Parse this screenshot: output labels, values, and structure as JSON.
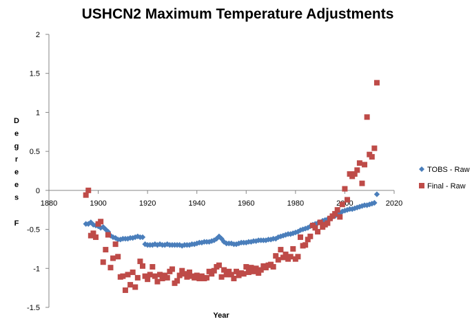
{
  "chart_data": {
    "type": "scatter",
    "title": "USHCN2 Maximum Temperature Adjustments",
    "xlabel": "Year",
    "ylabel_letters": [
      "D",
      "e",
      "g",
      "r",
      "e",
      "e",
      "s",
      "",
      "F"
    ],
    "xlim": [
      1880,
      2020
    ],
    "ylim": [
      -1.5,
      2
    ],
    "x_ticks": [
      1880,
      1900,
      1920,
      1940,
      1960,
      1980,
      2000,
      2020
    ],
    "y_ticks": [
      -1.5,
      -1,
      -0.5,
      0,
      0.5,
      1,
      1.5,
      2
    ],
    "x_tick_labels": [
      "1880",
      "1900",
      "1920",
      "1940",
      "1960",
      "1980",
      "2000",
      "2020"
    ],
    "y_tick_labels": [
      "-1.5",
      "-1",
      "-0.5",
      "0",
      "0.5",
      "1",
      "1.5",
      "2"
    ],
    "grid": false,
    "legend_position": "right",
    "series": [
      {
        "name": "TOBS - Raw",
        "color": "#4A7EBB",
        "marker": "diamond",
        "points": [
          [
            1895,
            -0.43
          ],
          [
            1896,
            -0.43
          ],
          [
            1897,
            -0.41
          ],
          [
            1898,
            -0.44
          ],
          [
            1899,
            -0.45
          ],
          [
            1900,
            -0.46
          ],
          [
            1901,
            -0.48
          ],
          [
            1902,
            -0.47
          ],
          [
            1903,
            -0.5
          ],
          [
            1904,
            -0.53
          ],
          [
            1905,
            -0.58
          ],
          [
            1906,
            -0.6
          ],
          [
            1907,
            -0.61
          ],
          [
            1908,
            -0.63
          ],
          [
            1909,
            -0.63
          ],
          [
            1910,
            -0.62
          ],
          [
            1911,
            -0.62
          ],
          [
            1912,
            -0.62
          ],
          [
            1913,
            -0.61
          ],
          [
            1914,
            -0.61
          ],
          [
            1915,
            -0.6
          ],
          [
            1916,
            -0.59
          ],
          [
            1917,
            -0.6
          ],
          [
            1918,
            -0.6
          ],
          [
            1919,
            -0.69
          ],
          [
            1920,
            -0.7
          ],
          [
            1921,
            -0.7
          ],
          [
            1922,
            -0.7
          ],
          [
            1923,
            -0.69
          ],
          [
            1924,
            -0.7
          ],
          [
            1925,
            -0.69
          ],
          [
            1926,
            -0.7
          ],
          [
            1927,
            -0.7
          ],
          [
            1928,
            -0.69
          ],
          [
            1929,
            -0.7
          ],
          [
            1930,
            -0.7
          ],
          [
            1931,
            -0.7
          ],
          [
            1932,
            -0.7
          ],
          [
            1933,
            -0.7
          ],
          [
            1934,
            -0.71
          ],
          [
            1935,
            -0.7
          ],
          [
            1936,
            -0.7
          ],
          [
            1937,
            -0.7
          ],
          [
            1938,
            -0.69
          ],
          [
            1939,
            -0.69
          ],
          [
            1940,
            -0.68
          ],
          [
            1941,
            -0.67
          ],
          [
            1942,
            -0.67
          ],
          [
            1943,
            -0.66
          ],
          [
            1944,
            -0.66
          ],
          [
            1945,
            -0.66
          ],
          [
            1946,
            -0.65
          ],
          [
            1947,
            -0.64
          ],
          [
            1948,
            -0.62
          ],
          [
            1949,
            -0.59
          ],
          [
            1950,
            -0.62
          ],
          [
            1951,
            -0.66
          ],
          [
            1952,
            -0.68
          ],
          [
            1953,
            -0.68
          ],
          [
            1954,
            -0.68
          ],
          [
            1955,
            -0.69
          ],
          [
            1956,
            -0.69
          ],
          [
            1957,
            -0.68
          ],
          [
            1958,
            -0.67
          ],
          [
            1959,
            -0.67
          ],
          [
            1960,
            -0.67
          ],
          [
            1961,
            -0.66
          ],
          [
            1962,
            -0.66
          ],
          [
            1963,
            -0.65
          ],
          [
            1964,
            -0.65
          ],
          [
            1965,
            -0.64
          ],
          [
            1966,
            -0.64
          ],
          [
            1967,
            -0.64
          ],
          [
            1968,
            -0.64
          ],
          [
            1969,
            -0.63
          ],
          [
            1970,
            -0.63
          ],
          [
            1971,
            -0.62
          ],
          [
            1972,
            -0.62
          ],
          [
            1973,
            -0.6
          ],
          [
            1974,
            -0.59
          ],
          [
            1975,
            -0.58
          ],
          [
            1976,
            -0.57
          ],
          [
            1977,
            -0.56
          ],
          [
            1978,
            -0.56
          ],
          [
            1979,
            -0.55
          ],
          [
            1980,
            -0.54
          ],
          [
            1981,
            -0.53
          ],
          [
            1982,
            -0.51
          ],
          [
            1983,
            -0.5
          ],
          [
            1984,
            -0.49
          ],
          [
            1985,
            -0.48
          ],
          [
            1986,
            -0.46
          ],
          [
            1987,
            -0.44
          ],
          [
            1988,
            -0.43
          ],
          [
            1989,
            -0.42
          ],
          [
            1990,
            -0.41
          ],
          [
            1991,
            -0.39
          ],
          [
            1992,
            -0.38
          ],
          [
            1993,
            -0.37
          ],
          [
            1994,
            -0.36
          ],
          [
            1995,
            -0.34
          ],
          [
            1996,
            -0.33
          ],
          [
            1997,
            -0.31
          ],
          [
            1998,
            -0.29
          ],
          [
            1999,
            -0.27
          ],
          [
            2000,
            -0.26
          ],
          [
            2001,
            -0.25
          ],
          [
            2002,
            -0.24
          ],
          [
            2003,
            -0.24
          ],
          [
            2004,
            -0.23
          ],
          [
            2005,
            -0.22
          ],
          [
            2006,
            -0.21
          ],
          [
            2007,
            -0.2
          ],
          [
            2008,
            -0.19
          ],
          [
            2009,
            -0.19
          ],
          [
            2010,
            -0.18
          ],
          [
            2011,
            -0.17
          ],
          [
            2012,
            -0.16
          ],
          [
            2013,
            -0.05
          ]
        ]
      },
      {
        "name": "Final - Raw",
        "color": "#BE4B48",
        "marker": "square",
        "points": [
          [
            1895,
            -0.06
          ],
          [
            1896,
            0.0
          ],
          [
            1897,
            -0.58
          ],
          [
            1898,
            -0.55
          ],
          [
            1899,
            -0.6
          ],
          [
            1900,
            -0.43
          ],
          [
            1901,
            -0.4
          ],
          [
            1902,
            -0.92
          ],
          [
            1903,
            -0.76
          ],
          [
            1904,
            -0.57
          ],
          [
            1905,
            -0.99
          ],
          [
            1906,
            -0.87
          ],
          [
            1907,
            -0.69
          ],
          [
            1908,
            -0.85
          ],
          [
            1909,
            -1.11
          ],
          [
            1910,
            -1.1
          ],
          [
            1911,
            -1.28
          ],
          [
            1912,
            -1.08
          ],
          [
            1913,
            -1.21
          ],
          [
            1914,
            -1.05
          ],
          [
            1915,
            -1.24
          ],
          [
            1916,
            -1.12
          ],
          [
            1917,
            -0.91
          ],
          [
            1918,
            -0.97
          ],
          [
            1919,
            -1.1
          ],
          [
            1920,
            -1.14
          ],
          [
            1921,
            -1.08
          ],
          [
            1922,
            -0.98
          ],
          [
            1923,
            -1.1
          ],
          [
            1924,
            -1.17
          ],
          [
            1925,
            -1.08
          ],
          [
            1926,
            -1.13
          ],
          [
            1927,
            -1.09
          ],
          [
            1928,
            -1.12
          ],
          [
            1929,
            -1.04
          ],
          [
            1930,
            -1.01
          ],
          [
            1931,
            -1.19
          ],
          [
            1932,
            -1.16
          ],
          [
            1933,
            -1.09
          ],
          [
            1934,
            -1.03
          ],
          [
            1935,
            -1.07
          ],
          [
            1936,
            -1.11
          ],
          [
            1937,
            -1.05
          ],
          [
            1938,
            -1.1
          ],
          [
            1939,
            -1.12
          ],
          [
            1940,
            -1.09
          ],
          [
            1941,
            -1.13
          ],
          [
            1942,
            -1.1
          ],
          [
            1943,
            -1.13
          ],
          [
            1944,
            -1.12
          ],
          [
            1945,
            -1.04
          ],
          [
            1946,
            -1.07
          ],
          [
            1947,
            -1.03
          ],
          [
            1948,
            -0.98
          ],
          [
            1949,
            -0.96
          ],
          [
            1950,
            -1.11
          ],
          [
            1951,
            -1.02
          ],
          [
            1952,
            -1.08
          ],
          [
            1953,
            -1.04
          ],
          [
            1954,
            -1.08
          ],
          [
            1955,
            -1.13
          ],
          [
            1956,
            -1.04
          ],
          [
            1957,
            -1.09
          ],
          [
            1958,
            -1.06
          ],
          [
            1959,
            -1.07
          ],
          [
            1960,
            -0.98
          ],
          [
            1961,
            -1.05
          ],
          [
            1962,
            -0.99
          ],
          [
            1963,
            -1.04
          ],
          [
            1964,
            -1.0
          ],
          [
            1965,
            -1.06
          ],
          [
            1966,
            -1.02
          ],
          [
            1967,
            -0.97
          ],
          [
            1968,
            -0.99
          ],
          [
            1969,
            -0.96
          ],
          [
            1970,
            -0.95
          ],
          [
            1971,
            -0.98
          ],
          [
            1972,
            -0.84
          ],
          [
            1973,
            -0.89
          ],
          [
            1974,
            -0.76
          ],
          [
            1975,
            -0.86
          ],
          [
            1976,
            -0.82
          ],
          [
            1977,
            -0.88
          ],
          [
            1978,
            -0.85
          ],
          [
            1979,
            -0.75
          ],
          [
            1980,
            -0.88
          ],
          [
            1981,
            -0.85
          ],
          [
            1982,
            -0.6
          ],
          [
            1983,
            -0.71
          ],
          [
            1984,
            -0.7
          ],
          [
            1985,
            -0.63
          ],
          [
            1986,
            -0.59
          ],
          [
            1987,
            -0.45
          ],
          [
            1988,
            -0.48
          ],
          [
            1989,
            -0.53
          ],
          [
            1990,
            -0.41
          ],
          [
            1991,
            -0.47
          ],
          [
            1992,
            -0.44
          ],
          [
            1993,
            -0.42
          ],
          [
            1994,
            -0.36
          ],
          [
            1995,
            -0.33
          ],
          [
            1996,
            -0.3
          ],
          [
            1997,
            -0.25
          ],
          [
            1998,
            -0.34
          ],
          [
            1999,
            -0.18
          ],
          [
            2000,
            0.02
          ],
          [
            2001,
            -0.12
          ],
          [
            2002,
            0.21
          ],
          [
            2003,
            0.18
          ],
          [
            2004,
            0.21
          ],
          [
            2005,
            0.26
          ],
          [
            2006,
            0.35
          ],
          [
            2007,
            0.09
          ],
          [
            2008,
            0.33
          ],
          [
            2009,
            0.94
          ],
          [
            2010,
            0.46
          ],
          [
            2011,
            0.43
          ],
          [
            2012,
            0.54
          ],
          [
            2013,
            1.38
          ]
        ]
      }
    ]
  }
}
